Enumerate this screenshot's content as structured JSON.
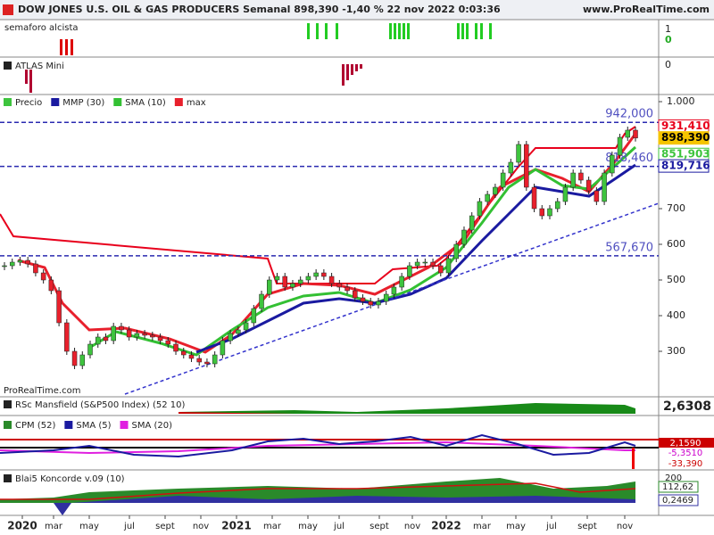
{
  "header": {
    "title": "DOW JONES U.S. OIL & GAS PRODUCERS Semanal 898,390 -1,40 % 22 nov 2022 0:03:36",
    "site": "www.ProRealTime.com"
  },
  "semaforo": {
    "label": "semaforo alcista",
    "axis": [
      "1",
      "0"
    ]
  },
  "atlas": {
    "label": "ATLAS Mini",
    "axis": [
      "0"
    ]
  },
  "price": {
    "legend": [
      "Precio",
      "MMP (30)",
      "SMA (10)",
      "max"
    ],
    "watermark": "ProRealTime.com",
    "ticks": [
      {
        "value": 1000,
        "label": "1.000"
      },
      700,
      600,
      500,
      400,
      300
    ],
    "levels": [
      {
        "value": 942,
        "label": "942,000"
      },
      {
        "value": 818.46,
        "label": "818,460"
      },
      {
        "value": 567.67,
        "label": "567,670"
      }
    ],
    "tags": [
      {
        "value": 931.41,
        "label": "931,410",
        "color": "#e8001c"
      },
      {
        "value": 898.39,
        "label": "898,390",
        "color": "#f5c400"
      },
      {
        "value": 851.903,
        "label": "851,903",
        "color": "#3ec43e"
      },
      {
        "value": 819.716,
        "label": "819,716",
        "color": "#1a1aa0"
      }
    ],
    "closes": [
      540,
      550,
      555,
      545,
      520,
      500,
      470,
      380,
      300,
      260,
      290,
      320,
      340,
      330,
      370,
      360,
      340,
      350,
      345,
      340,
      330,
      320,
      300,
      290,
      280,
      270,
      265,
      290,
      330,
      350,
      360,
      380,
      420,
      460,
      500,
      510,
      480,
      490,
      500,
      510,
      520,
      510,
      490,
      480,
      470,
      450,
      440,
      430,
      440,
      460,
      480,
      510,
      540,
      550,
      550,
      540,
      520,
      560,
      600,
      640,
      680,
      720,
      740,
      760,
      800,
      830,
      880,
      760,
      700,
      680,
      700,
      720,
      760,
      800,
      780,
      750,
      720,
      800,
      850,
      900,
      920,
      898
    ]
  },
  "rsc": {
    "label": "RSc Mansfield (S&P500 Index) (52 10)",
    "value": "2,6308"
  },
  "cpm": {
    "legend": [
      "CPM (52)",
      "SMA (5)",
      "SMA (20)"
    ],
    "axis": [
      "2,1590",
      "-5,3510",
      "-33,390"
    ]
  },
  "koncorde": {
    "label": "Blai5 Koncorde v.09 (10)",
    "axis": [
      "200",
      "112,62",
      "0,2469"
    ]
  },
  "xaxis": [
    "2020",
    "mar",
    "may",
    "jul",
    "sept",
    "nov",
    "2021",
    "mar",
    "may",
    "jul",
    "sept",
    "nov",
    "2022",
    "mar",
    "may",
    "jul",
    "sept",
    "nov"
  ]
}
